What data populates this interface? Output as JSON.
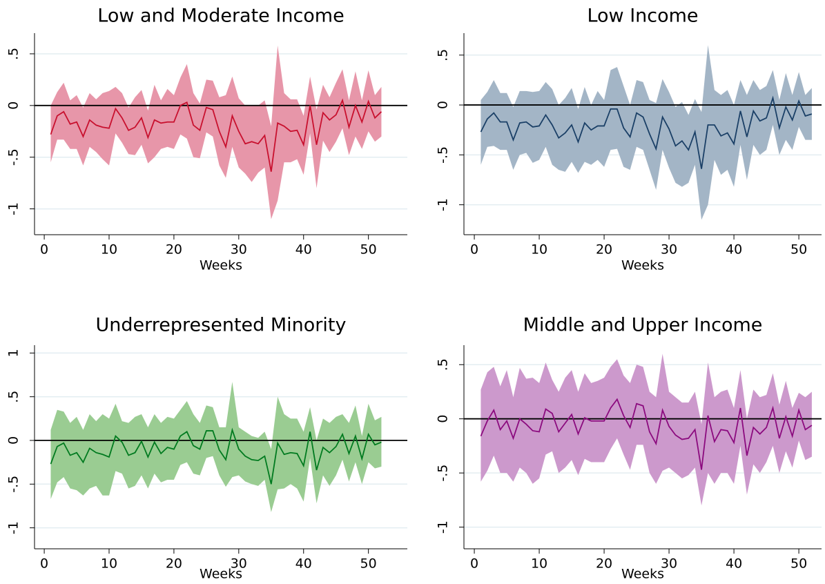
{
  "chart_data": [
    {
      "type": "line",
      "title": "Low and Moderate Income",
      "x_label": "Weeks",
      "x": [
        1,
        2,
        3,
        4,
        5,
        6,
        7,
        8,
        9,
        10,
        11,
        12,
        13,
        14,
        15,
        16,
        17,
        18,
        19,
        20,
        21,
        22,
        23,
        24,
        25,
        26,
        27,
        28,
        29,
        30,
        31,
        32,
        33,
        34,
        35,
        36,
        37,
        38,
        39,
        40,
        41,
        42,
        43,
        44,
        45,
        46,
        47,
        48,
        49,
        50,
        51,
        52
      ],
      "values": [
        -0.28,
        -0.1,
        -0.06,
        -0.18,
        -0.16,
        -0.3,
        -0.14,
        -0.19,
        -0.21,
        -0.22,
        -0.03,
        -0.12,
        -0.24,
        -0.21,
        -0.12,
        -0.31,
        -0.14,
        -0.17,
        -0.16,
        -0.16,
        0,
        0.03,
        -0.19,
        -0.24,
        -0.02,
        -0.04,
        -0.25,
        -0.4,
        -0.1,
        -0.25,
        -0.37,
        -0.35,
        -0.37,
        -0.29,
        -0.64,
        -0.17,
        -0.2,
        -0.25,
        -0.24,
        -0.38,
        0,
        -0.38,
        -0.07,
        -0.14,
        -0.09,
        0.05,
        -0.21,
        0,
        -0.16,
        0.04,
        -0.12,
        -0.06
      ],
      "upper": [
        0,
        0.13,
        0.22,
        0.05,
        0.1,
        -0.02,
        0.12,
        0.06,
        0.12,
        0.14,
        0.18,
        0.12,
        -0.02,
        0.08,
        0.15,
        -0.05,
        0.2,
        0.05,
        0.16,
        0.1,
        0.27,
        0.4,
        0.12,
        0.02,
        0.25,
        0.24,
        0.08,
        0.1,
        0.28,
        0.07,
        0,
        0,
        0,
        0.05,
        -0.2,
        0.58,
        0.12,
        0.06,
        0.06,
        -0.1,
        0.28,
        -0.04,
        0.2,
        0.08,
        0.22,
        0.35,
        0.05,
        0.33,
        0.05,
        0.34,
        0.1,
        0.18
      ],
      "lower": [
        -0.55,
        -0.33,
        -0.33,
        -0.42,
        -0.42,
        -0.58,
        -0.4,
        -0.45,
        -0.52,
        -0.58,
        -0.27,
        -0.36,
        -0.47,
        -0.48,
        -0.38,
        -0.56,
        -0.5,
        -0.42,
        -0.4,
        -0.42,
        -0.28,
        -0.32,
        -0.5,
        -0.51,
        -0.26,
        -0.3,
        -0.58,
        -0.7,
        -0.4,
        -0.6,
        -0.66,
        -0.74,
        -0.65,
        -0.6,
        -1.1,
        -0.92,
        -0.55,
        -0.55,
        -0.52,
        -0.67,
        -0.27,
        -0.8,
        -0.34,
        -0.45,
        -0.35,
        -0.22,
        -0.48,
        -0.3,
        -0.42,
        -0.25,
        -0.35,
        -0.3
      ],
      "color": "#c8102e",
      "band_color": "#e796a9",
      "reference_line": 0,
      "xlim": [
        -1.5,
        56
      ],
      "xticks": [
        0,
        10,
        20,
        30,
        40,
        50
      ],
      "ylim": [
        -1.25,
        0.7
      ],
      "yticks": [
        -1,
        {
          "value": -0.5,
          "label": "-.5"
        },
        0,
        {
          "value": 0.5,
          "label": ".5"
        }
      ],
      "grid": true
    },
    {
      "type": "line",
      "title": "Low Income",
      "x_label": "Weeks",
      "x": [
        1,
        2,
        3,
        4,
        5,
        6,
        7,
        8,
        9,
        10,
        11,
        12,
        13,
        14,
        15,
        16,
        17,
        18,
        19,
        20,
        21,
        22,
        23,
        24,
        25,
        26,
        27,
        28,
        29,
        30,
        31,
        32,
        33,
        34,
        35,
        36,
        37,
        38,
        39,
        40,
        41,
        42,
        43,
        44,
        45,
        46,
        47,
        48,
        49,
        50,
        51,
        52
      ],
      "values": [
        -0.27,
        -0.14,
        -0.08,
        -0.17,
        -0.17,
        -0.35,
        -0.18,
        -0.17,
        -0.22,
        -0.21,
        -0.1,
        -0.2,
        -0.33,
        -0.28,
        -0.2,
        -0.37,
        -0.18,
        -0.25,
        -0.21,
        -0.21,
        -0.04,
        -0.04,
        -0.23,
        -0.32,
        -0.08,
        -0.12,
        -0.29,
        -0.44,
        -0.12,
        -0.24,
        -0.41,
        -0.36,
        -0.45,
        -0.27,
        -0.64,
        -0.2,
        -0.2,
        -0.31,
        -0.28,
        -0.39,
        -0.06,
        -0.32,
        -0.06,
        -0.16,
        -0.13,
        0.07,
        -0.23,
        -0.02,
        -0.15,
        0.04,
        -0.11,
        -0.09
      ],
      "upper": [
        0.05,
        0.13,
        0.25,
        0.12,
        0.12,
        -0.02,
        0.14,
        0.14,
        0.13,
        0.14,
        0.23,
        0.16,
        0,
        0.07,
        0.17,
        -0.04,
        0.18,
        0,
        0.14,
        0.05,
        0.35,
        0.38,
        0.19,
        0,
        0.25,
        0.23,
        0.05,
        0.02,
        0.26,
        0.13,
        -0.02,
        0.03,
        -0.1,
        0.06,
        -0.07,
        0.6,
        0.15,
        0.1,
        0.15,
        0,
        0.25,
        0.1,
        0.25,
        0.15,
        0.19,
        0.35,
        0.05,
        0.32,
        0.1,
        0.33,
        0.1,
        0.17
      ],
      "lower": [
        -0.6,
        -0.42,
        -0.41,
        -0.45,
        -0.45,
        -0.65,
        -0.5,
        -0.48,
        -0.58,
        -0.55,
        -0.42,
        -0.6,
        -0.65,
        -0.67,
        -0.57,
        -0.68,
        -0.57,
        -0.6,
        -0.55,
        -0.62,
        -0.45,
        -0.44,
        -0.62,
        -0.65,
        -0.42,
        -0.45,
        -0.65,
        -0.85,
        -0.45,
        -0.63,
        -0.78,
        -0.82,
        -0.78,
        -0.6,
        -1.15,
        -1,
        -0.55,
        -0.7,
        -0.65,
        -0.82,
        -0.4,
        -0.75,
        -0.4,
        -0.5,
        -0.45,
        -0.2,
        -0.5,
        -0.35,
        -0.45,
        -0.22,
        -0.35,
        -0.35
      ],
      "color": "#1a3f66",
      "band_color": "#a3b5c6",
      "reference_line": 0,
      "xlim": [
        -1.6,
        53.5
      ],
      "xticks": [
        0,
        10,
        20,
        30,
        40,
        50
      ],
      "ylim": [
        -1.3,
        0.72
      ],
      "yticks": [
        -1,
        {
          "value": -0.5,
          "label": "-.5"
        },
        0,
        {
          "value": 0.5,
          "label": ".5"
        }
      ],
      "grid": true
    },
    {
      "type": "line",
      "title": "Underrepresented Minority",
      "x_label": "Weeks",
      "x": [
        1,
        2,
        3,
        4,
        5,
        6,
        7,
        8,
        9,
        10,
        11,
        12,
        13,
        14,
        15,
        16,
        17,
        18,
        19,
        20,
        21,
        22,
        23,
        24,
        25,
        26,
        27,
        28,
        29,
        30,
        31,
        32,
        33,
        34,
        35,
        36,
        37,
        38,
        39,
        40,
        41,
        42,
        43,
        44,
        45,
        46,
        47,
        48,
        49,
        50,
        51,
        52
      ],
      "values": [
        -0.27,
        -0.07,
        -0.03,
        -0.17,
        -0.14,
        -0.25,
        -0.09,
        -0.14,
        -0.16,
        -0.19,
        0.05,
        -0.02,
        -0.17,
        -0.14,
        -0.01,
        -0.19,
        -0.02,
        -0.15,
        -0.08,
        -0.1,
        0.05,
        0.1,
        -0.06,
        -0.1,
        0.11,
        0.11,
        -0.11,
        -0.22,
        0.12,
        -0.1,
        -0.18,
        -0.22,
        -0.23,
        -0.18,
        -0.5,
        -0.03,
        -0.16,
        -0.14,
        -0.15,
        -0.29,
        0.1,
        -0.34,
        -0.08,
        -0.14,
        -0.07,
        0.07,
        -0.15,
        0.05,
        -0.21,
        0.07,
        -0.05,
        -0.02
      ],
      "upper": [
        0.12,
        0.35,
        0.33,
        0.2,
        0.27,
        0.12,
        0.3,
        0.22,
        0.3,
        0.25,
        0.42,
        0.22,
        0.2,
        0.27,
        0.3,
        0.15,
        0.3,
        0.2,
        0.27,
        0.25,
        0.35,
        0.45,
        0.3,
        0.2,
        0.4,
        0.38,
        0.15,
        0.15,
        0.67,
        0.15,
        0.1,
        0.05,
        0.03,
        0.1,
        -0.1,
        0.5,
        0.3,
        0.25,
        0.25,
        0.1,
        0.38,
        0,
        0.25,
        0.2,
        0.27,
        0.3,
        0.2,
        0.4,
        0.05,
        0.42,
        0.23,
        0.27
      ],
      "lower": [
        -0.67,
        -0.48,
        -0.42,
        -0.55,
        -0.57,
        -0.63,
        -0.55,
        -0.52,
        -0.63,
        -0.63,
        -0.35,
        -0.38,
        -0.55,
        -0.52,
        -0.4,
        -0.55,
        -0.38,
        -0.48,
        -0.45,
        -0.45,
        -0.28,
        -0.25,
        -0.38,
        -0.4,
        -0.2,
        -0.18,
        -0.4,
        -0.53,
        -0.42,
        -0.4,
        -0.47,
        -0.5,
        -0.52,
        -0.45,
        -0.82,
        -0.56,
        -0.55,
        -0.5,
        -0.55,
        -0.7,
        -0.2,
        -0.72,
        -0.4,
        -0.52,
        -0.4,
        -0.22,
        -0.47,
        -0.25,
        -0.5,
        -0.25,
        -0.32,
        -0.3
      ],
      "color": "#007a1f",
      "band_color": "#9acc92",
      "reference_line": 0,
      "xlim": [
        -1.5,
        56
      ],
      "xticks": [
        0,
        10,
        20,
        30,
        40,
        50
      ],
      "ylim": [
        -1.24,
        1.09
      ],
      "yticks": [
        -1,
        {
          "value": -0.5,
          "label": "-.5"
        },
        0,
        {
          "value": 0.5,
          "label": ".5"
        },
        1
      ],
      "grid": true
    },
    {
      "type": "line",
      "title": "Middle and Upper Income",
      "x_label": "Weeks",
      "x": [
        1,
        2,
        3,
        4,
        5,
        6,
        7,
        8,
        9,
        10,
        11,
        12,
        13,
        14,
        15,
        16,
        17,
        18,
        19,
        20,
        21,
        22,
        23,
        24,
        25,
        26,
        27,
        28,
        29,
        30,
        31,
        32,
        33,
        34,
        35,
        36,
        37,
        38,
        39,
        40,
        41,
        42,
        43,
        44,
        45,
        46,
        47,
        48,
        49,
        50,
        51,
        52
      ],
      "values": [
        -0.16,
        -0.02,
        0.08,
        -0.1,
        -0.02,
        -0.18,
        0,
        -0.05,
        -0.11,
        -0.12,
        0.09,
        0.05,
        -0.12,
        -0.04,
        0.04,
        -0.14,
        0.01,
        -0.02,
        -0.02,
        -0.02,
        0.1,
        0.18,
        0.03,
        -0.08,
        0.14,
        0.12,
        -0.12,
        -0.23,
        0.08,
        -0.07,
        -0.15,
        -0.19,
        -0.18,
        -0.1,
        -0.47,
        0.03,
        -0.21,
        -0.1,
        -0.11,
        -0.22,
        0.1,
        -0.34,
        -0.08,
        -0.14,
        -0.08,
        0.1,
        -0.18,
        0.02,
        -0.16,
        0.08,
        -0.1,
        -0.06
      ],
      "upper": [
        0.27,
        0.43,
        0.48,
        0.3,
        0.45,
        0.2,
        0.47,
        0.37,
        0.38,
        0.33,
        0.52,
        0.36,
        0.25,
        0.38,
        0.45,
        0.25,
        0.42,
        0.33,
        0.35,
        0.38,
        0.48,
        0.55,
        0.4,
        0.33,
        0.5,
        0.48,
        0.25,
        0.2,
        0.6,
        0.25,
        0.2,
        0.15,
        0.15,
        0.25,
        -0.05,
        0.52,
        0.2,
        0.25,
        0.27,
        0.1,
        0.45,
        0,
        0.27,
        0.2,
        0.22,
        0.42,
        0.13,
        0.35,
        0.1,
        0.24,
        0.2,
        0.25
      ],
      "lower": [
        -0.58,
        -0.48,
        -0.34,
        -0.5,
        -0.5,
        -0.58,
        -0.45,
        -0.5,
        -0.6,
        -0.55,
        -0.33,
        -0.3,
        -0.5,
        -0.45,
        -0.38,
        -0.52,
        -0.37,
        -0.4,
        -0.4,
        -0.4,
        -0.28,
        -0.18,
        -0.33,
        -0.47,
        -0.24,
        -0.24,
        -0.5,
        -0.6,
        -0.48,
        -0.45,
        -0.5,
        -0.55,
        -0.52,
        -0.45,
        -0.8,
        -0.5,
        -0.6,
        -0.5,
        -0.5,
        -0.6,
        -0.25,
        -0.7,
        -0.42,
        -0.5,
        -0.4,
        -0.25,
        -0.5,
        -0.3,
        -0.45,
        -0.2,
        -0.38,
        -0.35
      ],
      "color": "#8b0a7e",
      "band_color": "#cc99cc",
      "reference_line": 0,
      "xlim": [
        -1.6,
        53.5
      ],
      "xticks": [
        0,
        10,
        20,
        30,
        40,
        50
      ],
      "ylim": [
        -1.2,
        0.68
      ],
      "yticks": [
        -1,
        {
          "value": -0.5,
          "label": "-.5"
        },
        0,
        {
          "value": 0.5,
          "label": ".5"
        }
      ],
      "grid": true
    }
  ]
}
